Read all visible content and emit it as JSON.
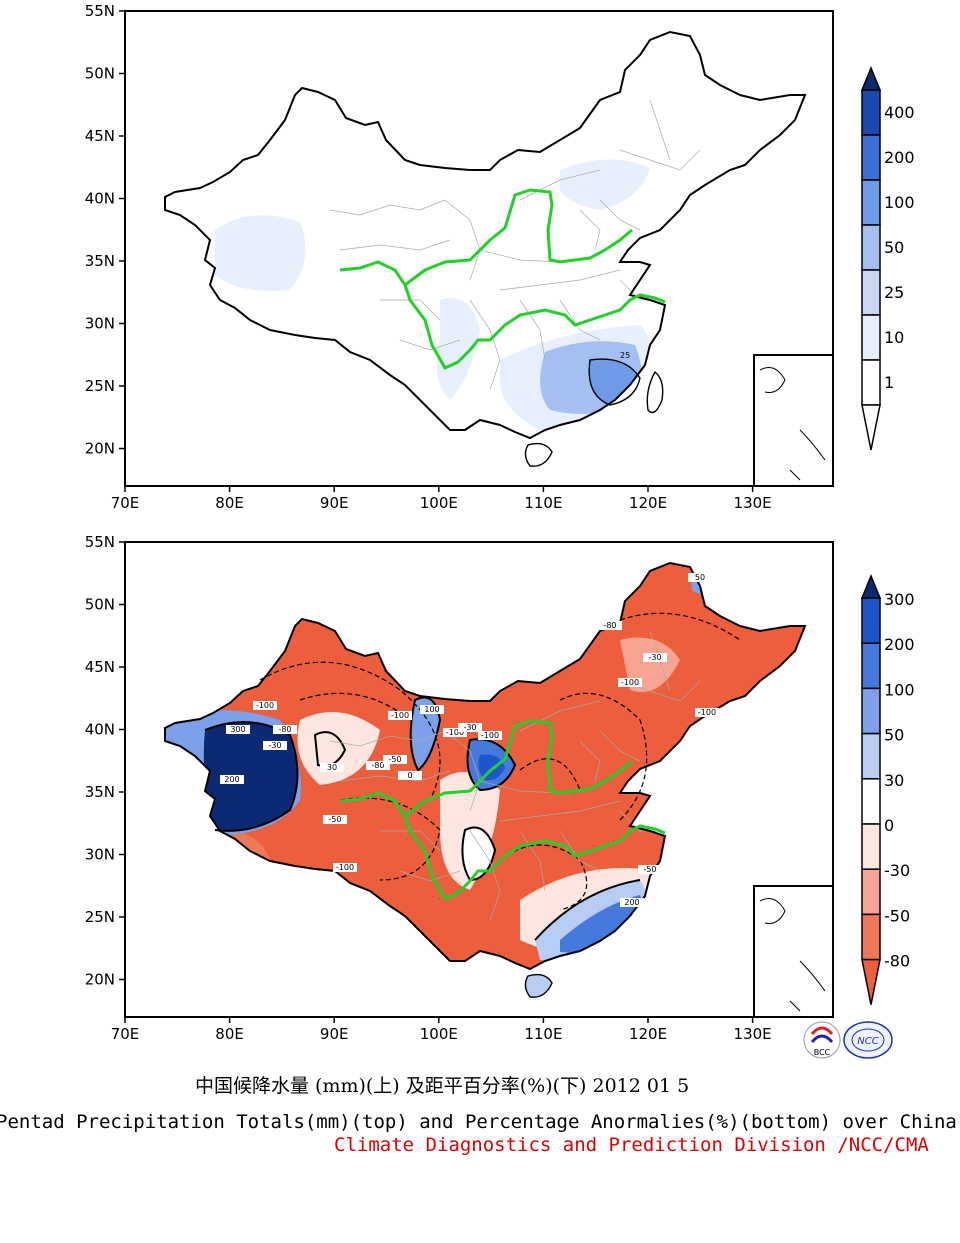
{
  "top_map": {
    "lat_labels": [
      "55N",
      "50N",
      "45N",
      "40N",
      "35N",
      "30N",
      "25N",
      "20N"
    ],
    "lon_labels": [
      "70E",
      "80E",
      "90E",
      "100E",
      "110E",
      "120E",
      "130E"
    ],
    "colorbar": {
      "levels": [
        "1",
        "10",
        "25",
        "50",
        "100",
        "200",
        "400"
      ],
      "colors": [
        "#ffffff",
        "#e8effc",
        "#c9d8f6",
        "#a5bff0",
        "#6f9ae8",
        "#3d6fd8",
        "#1a49b2",
        "#0b2a73"
      ]
    },
    "contour_labels": [
      "25"
    ]
  },
  "bottom_map": {
    "lat_labels": [
      "55N",
      "50N",
      "45N",
      "40N",
      "35N",
      "30N",
      "25N",
      "20N"
    ],
    "lon_labels": [
      "70E",
      "80E",
      "90E",
      "100E",
      "110E",
      "120E",
      "130E"
    ],
    "colorbar": {
      "levels": [
        "300",
        "200",
        "100",
        "50",
        "30",
        "0",
        "-30",
        "-50",
        "-80"
      ],
      "colors": [
        "#0b2a73",
        "#1e54cc",
        "#4579dc",
        "#7ca1e8",
        "#b8cdf3",
        "#ffffff",
        "#fde6df",
        "#f7a592",
        "#f07858",
        "#ec5e3c"
      ]
    },
    "contour_labels": [
      "-100",
      "-80",
      "-50",
      "-30",
      "0",
      "30",
      "100",
      "200",
      "300",
      "-100",
      "-80",
      "-100",
      "-50",
      "-100",
      "-30",
      "-80",
      "-100",
      "-100",
      "-100",
      "50",
      "200",
      "-50",
      "-30"
    ]
  },
  "logos": {
    "bcc": "BCC",
    "ncc": "NCC"
  },
  "caption": {
    "chinese": "中国候降水量 (mm)(上) 及距平百分率(%)(下) 2012 01 5",
    "english": "Pentad Precipitation Totals(mm)(top) and Percentage Anormalies(%)(bottom) over China",
    "credit": "Climate Diagnostics and Prediction Division /NCC/CMA"
  }
}
